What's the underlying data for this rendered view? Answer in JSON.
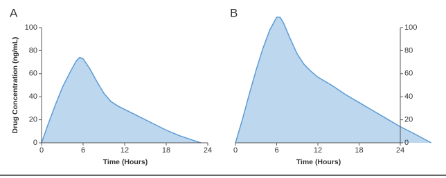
{
  "chart_data": [
    {
      "type": "area",
      "title": "A",
      "ylabel": "Drug Concentration (ng/mL)",
      "xlabel": "Time (Hours)",
      "x": [
        0,
        1,
        2,
        3,
        4,
        5,
        5.5,
        6,
        7,
        8,
        9,
        10,
        11,
        12,
        14,
        16,
        18,
        20,
        22,
        23
      ],
      "values": [
        0,
        17,
        33,
        48,
        60,
        71,
        74,
        73,
        64,
        53,
        43,
        36,
        32,
        29,
        23,
        17,
        11,
        6,
        2,
        0
      ],
      "xlim": [
        0,
        24
      ],
      "xticks": [
        0,
        6,
        12,
        18,
        24
      ],
      "ylim": [
        0,
        100
      ],
      "yticks": [
        0,
        20,
        40,
        60,
        80,
        100
      ],
      "yaxis_position": "left",
      "color": "#5b9bd5",
      "fill": "#bdd7ee"
    },
    {
      "type": "area",
      "title": "B",
      "xlabel": "Time (Hours)",
      "x": [
        0,
        1,
        2,
        3,
        4,
        5,
        6,
        6.5,
        7,
        8,
        9,
        10,
        11,
        12,
        14,
        16,
        18,
        20,
        22,
        24,
        26,
        28.5
      ],
      "values": [
        0,
        20,
        42,
        63,
        82,
        98,
        109,
        109,
        104,
        90,
        77,
        68,
        62,
        57,
        50,
        42,
        35,
        28,
        21,
        14,
        8,
        0
      ],
      "xlim": [
        0,
        24
      ],
      "xticks": [
        0,
        6,
        12,
        18,
        24
      ],
      "ylim": [
        0,
        100
      ],
      "yticks": [
        0,
        20,
        40,
        60,
        80,
        100
      ],
      "yaxis_position": "right",
      "color": "#5b9bd5",
      "fill": "#bdd7ee"
    }
  ]
}
